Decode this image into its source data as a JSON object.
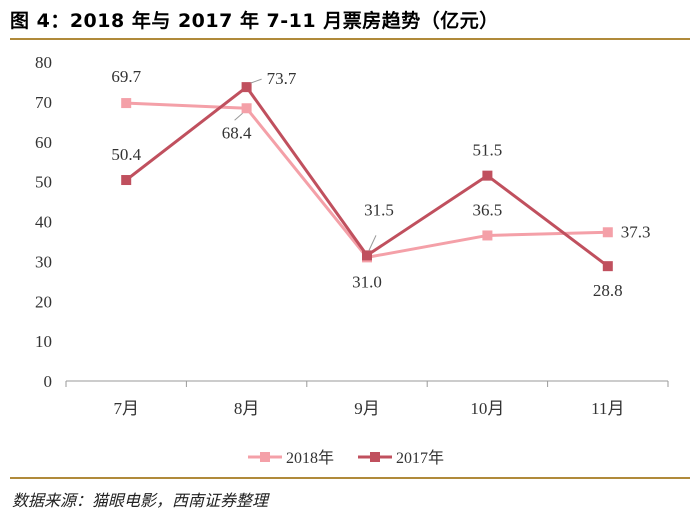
{
  "figure": {
    "title": "图 4：2018 年与 2017 年 7-11 月票房趋势（亿元）",
    "source": "数据来源：猫眼电影，西南证券整理"
  },
  "chart_data": {
    "type": "line",
    "title": "",
    "xlabel": "",
    "ylabel": "",
    "categories": [
      "7月",
      "8月",
      "9月",
      "10月",
      "11月"
    ],
    "ylim": [
      0,
      80
    ],
    "yticks": [
      0,
      10,
      20,
      30,
      40,
      50,
      60,
      70,
      80
    ],
    "grid": false,
    "legend": "bottom",
    "series": [
      {
        "name": "2018年",
        "color": "#f4a0a8",
        "values": [
          69.7,
          68.4,
          31.0,
          36.5,
          37.3
        ],
        "labels": [
          "69.7",
          "68.4",
          "31.0",
          "36.5",
          "37.3"
        ]
      },
      {
        "name": "2017年",
        "color": "#c0505e",
        "values": [
          50.4,
          73.7,
          31.5,
          51.5,
          28.8
        ],
        "labels": [
          "50.4",
          "73.7",
          "31.5",
          "51.5",
          "28.8"
        ]
      }
    ]
  }
}
